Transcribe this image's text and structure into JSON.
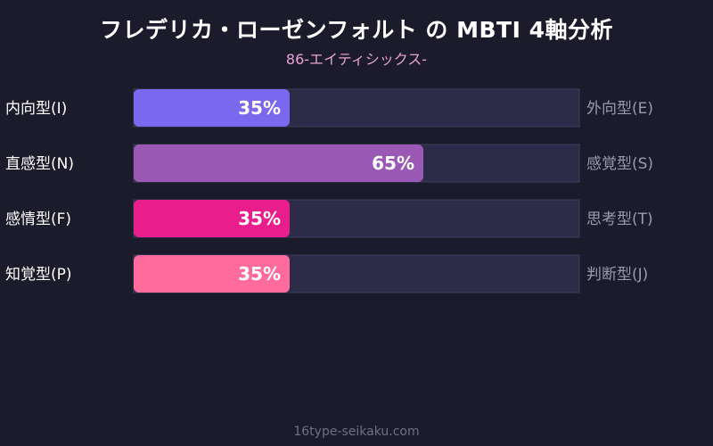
{
  "title": "フレデリカ・ローゼンフォルト の MBTI 4軸分析",
  "subtitle": "86-エイティシックス-",
  "footer": "16type-seikaku.com",
  "colors": {
    "background": "#1b1b2c",
    "track": "#2c2b48",
    "track_border": "#3e3d5e"
  },
  "chart_data": {
    "type": "bar",
    "orientation": "horizontal",
    "xlim": [
      0,
      100
    ],
    "unit": "%",
    "rows": [
      {
        "left_label": "内向型(I)",
        "right_label": "外向型(E)",
        "value": 35,
        "value_label": "35%",
        "color": "#7b68ee"
      },
      {
        "left_label": "直感型(N)",
        "right_label": "感覚型(S)",
        "value": 65,
        "value_label": "65%",
        "color": "#9b59b6"
      },
      {
        "left_label": "感情型(F)",
        "right_label": "思考型(T)",
        "value": 35,
        "value_label": "35%",
        "color": "#e91e8c"
      },
      {
        "left_label": "知覚型(P)",
        "right_label": "判断型(J)",
        "value": 35,
        "value_label": "35%",
        "color": "#ff6b9d"
      }
    ]
  }
}
